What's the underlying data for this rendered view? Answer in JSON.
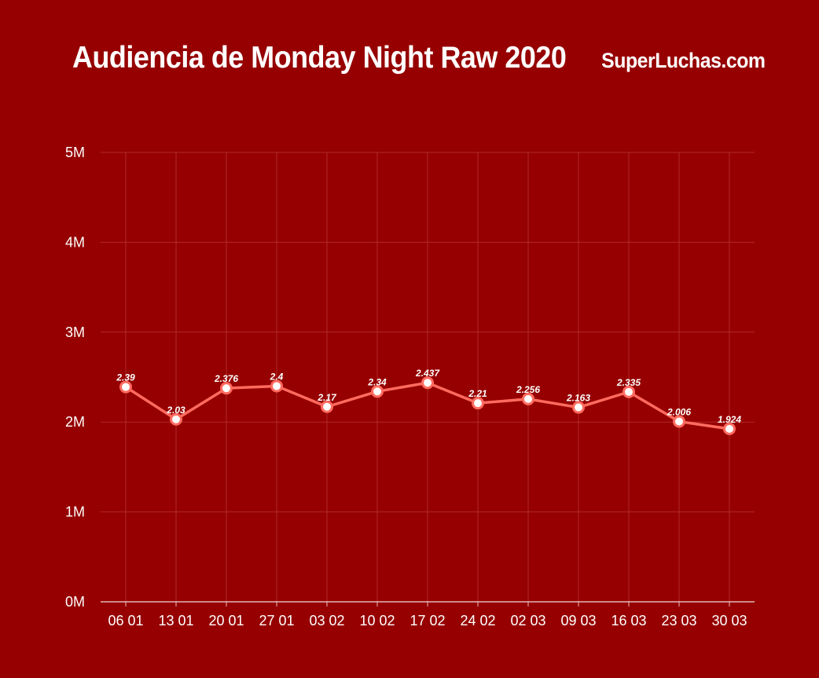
{
  "header": {
    "title": "Audiencia de Monday Night Raw 2020",
    "brand": "SuperLuchas.com"
  },
  "colors": {
    "background": "#960000",
    "line": "#ff6b5f",
    "grid": "#b02a2a",
    "text": "#ffffff"
  },
  "chart_data": {
    "type": "line",
    "title": "Audiencia de Monday Night Raw 2020",
    "xlabel": "",
    "ylabel": "",
    "categories": [
      "06 01",
      "13 01",
      "20 01",
      "27 01",
      "03 02",
      "10 02",
      "17 02",
      "24 02",
      "02 03",
      "09 03",
      "16 03",
      "23 03",
      "30 03"
    ],
    "series": [
      {
        "values": [
          2.39,
          2.03,
          2.376,
          2.4,
          2.17,
          2.34,
          2.437,
          2.21,
          2.256,
          2.163,
          2.335,
          2.006,
          1.924
        ],
        "data_labels": [
          "2.39",
          "2.03",
          "2.376",
          "2.4",
          "2.17",
          "2.34",
          "2.437",
          "2.21",
          "2.256",
          "2.163",
          "2.335",
          "2.006",
          "1.924"
        ]
      }
    ],
    "y_ticks": [
      0,
      1,
      2,
      3,
      4,
      5
    ],
    "y_tick_labels": [
      "0M",
      "1M",
      "2M",
      "3M",
      "4M",
      "5M"
    ],
    "ylim": [
      0,
      5
    ],
    "grid": true,
    "legend": "none"
  }
}
